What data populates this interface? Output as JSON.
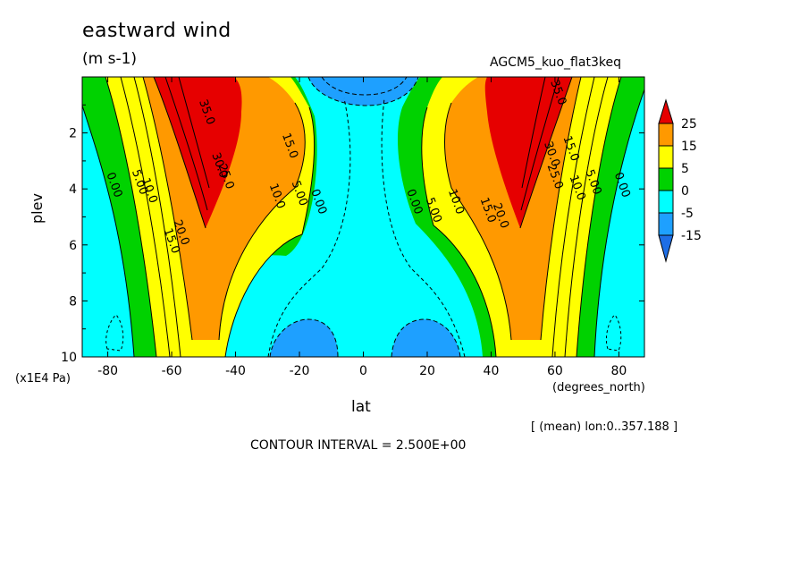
{
  "header": {
    "title": "eastward wind",
    "units": "(m s-1)",
    "run_name": "AGCM5_kuo_flat3keq",
    "mean_note": "[ (mean) lon:0..357.188 ]",
    "contour_interval": "CONTOUR INTERVAL = 2.500E+00"
  },
  "colors": {
    "lt_minus15": "#1e90ff",
    "m15_m5": "#1ea0ff",
    "m5_0": "#00ffff",
    "0_5": "#00d200",
    "5_15": "#ffff00",
    "15_25": "#ff9900",
    "gt_25": "#e60000"
  },
  "chart_data": {
    "type": "heatmap",
    "title": "eastward wind",
    "subtitle": "(m s-1)",
    "xlabel": "lat",
    "xunits": "(degrees_north)",
    "ylabel": "plev",
    "yunits": "(x1E4 Pa)",
    "xlim": [
      -88,
      88
    ],
    "ylim": [
      0,
      10
    ],
    "y_inverted": true,
    "x_ticks": [
      -80,
      -60,
      -40,
      -20,
      0,
      20,
      40,
      60,
      80
    ],
    "y_ticks": [
      2,
      4,
      6,
      8,
      10
    ],
    "color_levels": [
      "25",
      "15",
      "5",
      "0",
      "-5",
      "-15"
    ],
    "contour_labels": [
      {
        "text": "35.0",
        "lat": -50,
        "plev": 1.3
      },
      {
        "text": "30.0",
        "lat": -46,
        "plev": 3.2
      },
      {
        "text": "25.0",
        "lat": -44,
        "plev": 3.6
      },
      {
        "text": "20.0",
        "lat": -58,
        "plev": 5.6
      },
      {
        "text": "15.0",
        "lat": -61,
        "plev": 5.9
      },
      {
        "text": "10.0",
        "lat": -68,
        "plev": 4.1
      },
      {
        "text": "5.00",
        "lat": -71,
        "plev": 3.8
      },
      {
        "text": "0.00",
        "lat": -79,
        "plev": 3.9
      },
      {
        "text": "15.0",
        "lat": -24,
        "plev": 2.5
      },
      {
        "text": "10.0",
        "lat": -28,
        "plev": 4.3
      },
      {
        "text": "5.00",
        "lat": -21,
        "plev": 4.2
      },
      {
        "text": "0.00",
        "lat": -15,
        "plev": 4.5
      },
      {
        "text": "0.00",
        "lat": 15,
        "plev": 4.5
      },
      {
        "text": "5.00",
        "lat": 21,
        "plev": 4.8
      },
      {
        "text": "10.0",
        "lat": 28,
        "plev": 4.5
      },
      {
        "text": "15.0",
        "lat": 38,
        "plev": 4.8
      },
      {
        "text": "20.0",
        "lat": 42,
        "plev": 5.0
      },
      {
        "text": "25.0",
        "lat": 59,
        "plev": 3.6
      },
      {
        "text": "30.0",
        "lat": 58,
        "plev": 2.8
      },
      {
        "text": "15.0",
        "lat": 64,
        "plev": 2.6
      },
      {
        "text": "35.0",
        "lat": 60,
        "plev": 0.6
      },
      {
        "text": "10.0",
        "lat": 66,
        "plev": 4.0
      },
      {
        "text": "5.00",
        "lat": 71,
        "plev": 3.8
      },
      {
        "text": "0.00",
        "lat": 80,
        "plev": 3.9
      }
    ]
  }
}
